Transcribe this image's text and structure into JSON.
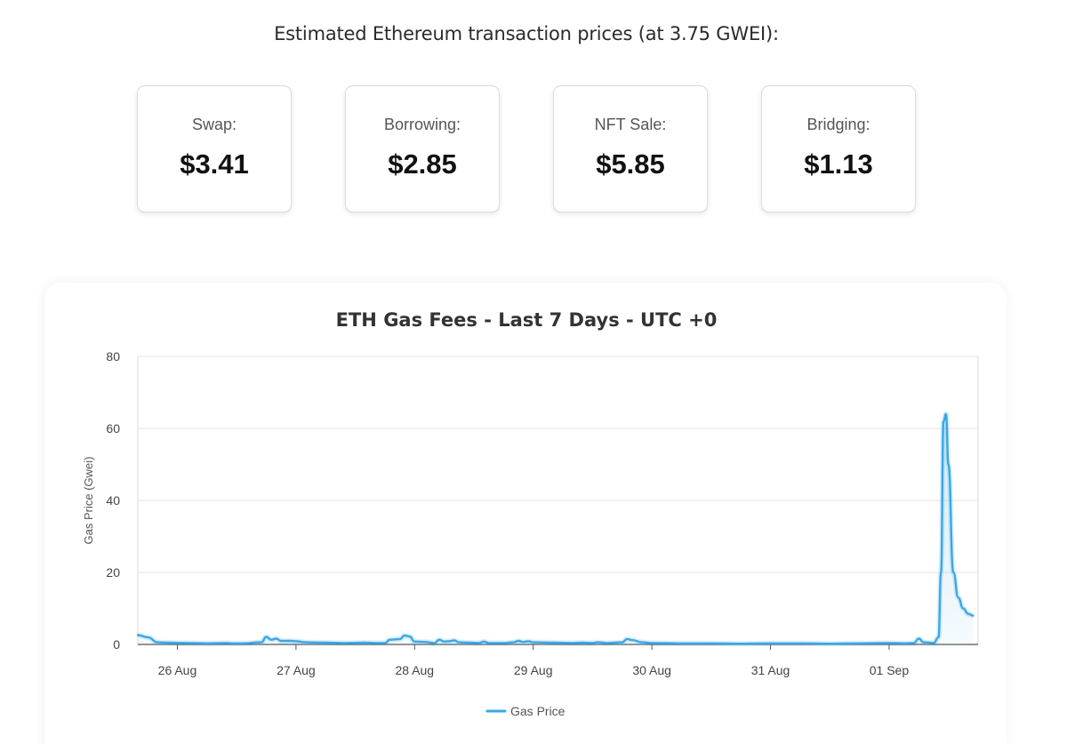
{
  "header": {
    "title": "Estimated Ethereum transaction prices (at 3.75 GWEI):"
  },
  "cards": [
    {
      "label": "Swap:",
      "value": "$3.41"
    },
    {
      "label": "Borrowing:",
      "value": "$2.85"
    },
    {
      "label": "NFT Sale:",
      "value": "$5.85"
    },
    {
      "label": "Bridging:",
      "value": "$1.13"
    }
  ],
  "colors": {
    "line": "#3aa7e6",
    "grid": "#e6e6e6"
  },
  "chart_data": {
    "type": "line",
    "title": "ETH Gas Fees - Last 7 Days - UTC +0",
    "xlabel": "",
    "ylabel": "Gas Price (Gwei)",
    "ylim": [
      0,
      80
    ],
    "yticks": [
      0,
      20,
      40,
      60,
      80
    ],
    "xlim": [
      "2025-08-25T16:00",
      "2025-09-01T18:00"
    ],
    "xticks": [
      {
        "label": "26 Aug",
        "at": "2025-08-26T00:00"
      },
      {
        "label": "27 Aug",
        "at": "2025-08-27T00:00"
      },
      {
        "label": "28 Aug",
        "at": "2025-08-28T00:00"
      },
      {
        "label": "29 Aug",
        "at": "2025-08-29T00:00"
      },
      {
        "label": "30 Aug",
        "at": "2025-08-30T00:00"
      },
      {
        "label": "31 Aug",
        "at": "2025-08-31T00:00"
      },
      {
        "label": "01 Sep",
        "at": "2025-09-01T00:00"
      }
    ],
    "grid": true,
    "legend": "bottom-center",
    "series": [
      {
        "name": "Gas Price",
        "points": [
          [
            "2025-08-25T16:00",
            2.6
          ],
          [
            "2025-08-25T18:00",
            2.0
          ],
          [
            "2025-08-25T20:00",
            0.6
          ],
          [
            "2025-08-25T22:00",
            0.5
          ],
          [
            "2025-08-26T02:00",
            0.4
          ],
          [
            "2025-08-26T06:00",
            0.3
          ],
          [
            "2025-08-26T10:00",
            0.4
          ],
          [
            "2025-08-26T11:00",
            0.3
          ],
          [
            "2025-08-26T13:00",
            0.3
          ],
          [
            "2025-08-26T17:00",
            0.6
          ],
          [
            "2025-08-26T18:00",
            2.1
          ],
          [
            "2025-08-26T19:00",
            1.3
          ],
          [
            "2025-08-26T20:00",
            1.6
          ],
          [
            "2025-08-26T21:00",
            1.0
          ],
          [
            "2025-08-26T23:00",
            1.0
          ],
          [
            "2025-08-27T00:00",
            0.9
          ],
          [
            "2025-08-27T02:00",
            0.6
          ],
          [
            "2025-08-27T06:00",
            0.5
          ],
          [
            "2025-08-27T10:00",
            0.4
          ],
          [
            "2025-08-27T14:00",
            0.5
          ],
          [
            "2025-08-27T16:00",
            0.4
          ],
          [
            "2025-08-27T18:00",
            0.4
          ],
          [
            "2025-08-27T19:00",
            1.3
          ],
          [
            "2025-08-27T21:00",
            1.5
          ],
          [
            "2025-08-27T22:00",
            2.5
          ],
          [
            "2025-08-27T23:00",
            2.2
          ],
          [
            "2025-08-28T00:00",
            0.8
          ],
          [
            "2025-08-28T02:00",
            0.7
          ],
          [
            "2025-08-28T04:00",
            0.4
          ],
          [
            "2025-08-28T05:00",
            1.3
          ],
          [
            "2025-08-28T06:00",
            0.8
          ],
          [
            "2025-08-28T07:00",
            0.9
          ],
          [
            "2025-08-28T08:00",
            1.1
          ],
          [
            "2025-08-28T09:00",
            0.6
          ],
          [
            "2025-08-28T11:00",
            0.5
          ],
          [
            "2025-08-28T13:00",
            0.4
          ],
          [
            "2025-08-28T14:00",
            0.8
          ],
          [
            "2025-08-28T15:00",
            0.4
          ],
          [
            "2025-08-28T18:00",
            0.4
          ],
          [
            "2025-08-28T20:00",
            0.6
          ],
          [
            "2025-08-28T21:00",
            1.0
          ],
          [
            "2025-08-28T22:00",
            0.7
          ],
          [
            "2025-08-28T23:00",
            0.9
          ],
          [
            "2025-08-29T00:00",
            0.6
          ],
          [
            "2025-08-29T04:00",
            0.5
          ],
          [
            "2025-08-29T08:00",
            0.4
          ],
          [
            "2025-08-29T10:00",
            0.5
          ],
          [
            "2025-08-29T12:00",
            0.4
          ],
          [
            "2025-08-29T13:00",
            0.6
          ],
          [
            "2025-08-29T15:00",
            0.4
          ],
          [
            "2025-08-29T18:00",
            0.6
          ],
          [
            "2025-08-29T19:00",
            1.5
          ],
          [
            "2025-08-29T20:00",
            1.2
          ],
          [
            "2025-08-29T22:00",
            0.6
          ],
          [
            "2025-08-30T00:00",
            0.4
          ],
          [
            "2025-08-30T06:00",
            0.3
          ],
          [
            "2025-08-30T12:00",
            0.3
          ],
          [
            "2025-08-30T18:00",
            0.2
          ],
          [
            "2025-08-31T00:00",
            0.3
          ],
          [
            "2025-08-31T06:00",
            0.3
          ],
          [
            "2025-08-31T12:00",
            0.2
          ],
          [
            "2025-08-31T18:00",
            0.3
          ],
          [
            "2025-09-01T00:00",
            0.4
          ],
          [
            "2025-09-01T03:00",
            0.3
          ],
          [
            "2025-09-01T05:00",
            0.4
          ],
          [
            "2025-09-01T06:00",
            1.6
          ],
          [
            "2025-09-01T07:00",
            0.6
          ],
          [
            "2025-09-01T09:00",
            0.4
          ],
          [
            "2025-09-01T10:00",
            2.0
          ],
          [
            "2025-09-01T10:30",
            20.0
          ],
          [
            "2025-09-01T11:00",
            62.0
          ],
          [
            "2025-09-01T11:30",
            64.0
          ],
          [
            "2025-09-01T12:00",
            50.0
          ],
          [
            "2025-09-01T13:00",
            20.0
          ],
          [
            "2025-09-01T14:00",
            13.0
          ],
          [
            "2025-09-01T15:00",
            10.0
          ],
          [
            "2025-09-01T16:00",
            8.5
          ],
          [
            "2025-09-01T17:00",
            8.0
          ]
        ]
      }
    ]
  }
}
